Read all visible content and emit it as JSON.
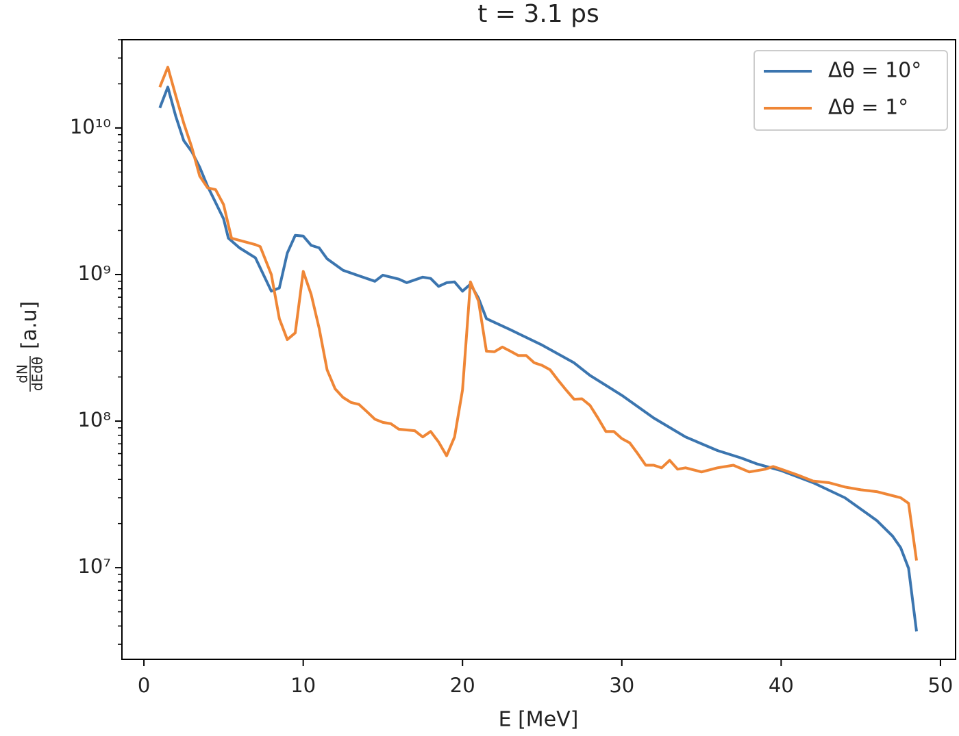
{
  "chart_data": {
    "type": "line",
    "title": "t = 3.1 ps",
    "xlabel": "E [MeV]",
    "ylabel_numerator": "dN",
    "ylabel_denominator": "dEdθ",
    "ylabel_unit": "[a.u]",
    "xlim": [
      -1.38,
      50.95
    ],
    "xticks": [
      0,
      10,
      20,
      30,
      40,
      50
    ],
    "ylim": [
      2370000,
      40000000000
    ],
    "yscale": "log",
    "yticks": [
      {
        "value": 10000000,
        "label": "10⁷"
      },
      {
        "value": 100000000,
        "label": "10⁸"
      },
      {
        "value": 1000000000,
        "label": "10⁹"
      },
      {
        "value": 10000000000,
        "label": "10¹⁰"
      }
    ],
    "grid": false,
    "legend": "upper right",
    "series": [
      {
        "name": "Δθ = 10°",
        "color": "#3b75af",
        "x": [
          1.0,
          1.5,
          2.0,
          2.5,
          3.0,
          3.5,
          4.0,
          4.5,
          5.0,
          5.3,
          6,
          7,
          8,
          8.5,
          9.0,
          9.5,
          10,
          10.5,
          11,
          11.5,
          12.5,
          13.5,
          14.5,
          15,
          16,
          16.5,
          17.5,
          18,
          18.5,
          19,
          19.5,
          20,
          20.5,
          21,
          21.5,
          23,
          25,
          27,
          28,
          30,
          32,
          34,
          36,
          37.5,
          38.5,
          40,
          42,
          44,
          46,
          47,
          47.5,
          48,
          48.5
        ],
        "values": [
          13700000000,
          19000000000,
          12000000000,
          8200000000,
          6900000000,
          5400000000,
          4000000000,
          3100000000,
          2400000000,
          1770000000,
          1520000000,
          1300000000,
          770000000,
          810000000,
          1400000000,
          1850000000,
          1830000000,
          1580000000,
          1520000000,
          1280000000,
          1070000000,
          980000000,
          900000000,
          990000000,
          930000000,
          880000000,
          960000000,
          940000000,
          830000000,
          880000000,
          890000000,
          770000000,
          860000000,
          690000000,
          500000000,
          420000000,
          330000000,
          250000000,
          205000000,
          150000000,
          105000000,
          78000000,
          63000000,
          56000000,
          51000000,
          46000000,
          38000000,
          30000000,
          21000000,
          16400000,
          13700000,
          9900000,
          3670000
        ]
      },
      {
        "name": "Δθ = 1°",
        "color": "#ef8636",
        "x": [
          1.0,
          1.5,
          2.0,
          2.5,
          3.0,
          3.5,
          4.0,
          4.5,
          5.0,
          5.5,
          7.0,
          7.3,
          8,
          8.5,
          9,
          9.5,
          10,
          10.5,
          11,
          11.5,
          12,
          12.5,
          13,
          13.5,
          14,
          14.5,
          15,
          15.5,
          16,
          17,
          17.5,
          18,
          18.5,
          19,
          19.5,
          20,
          20.5,
          21,
          21.5,
          22,
          22.5,
          23,
          23.5,
          24,
          24.5,
          25,
          25.5,
          26,
          26.5,
          27,
          27.5,
          28,
          28.5,
          29,
          29.5,
          30,
          30.5,
          31,
          31.5,
          32,
          32.5,
          33,
          33.5,
          34,
          35,
          36,
          37,
          38,
          39,
          39.5,
          40,
          41,
          42,
          43,
          44,
          45,
          46,
          47,
          47.5,
          48,
          48.5
        ],
        "values": [
          19000000000,
          26000000000,
          16600000000,
          10800000000,
          7400000000,
          4700000000,
          3900000000,
          3800000000,
          3000000000,
          1770000000,
          1600000000,
          1550000000,
          1000000000,
          500000000,
          360000000,
          400000000,
          1050000000,
          730000000,
          430000000,
          224000000,
          166000000,
          145000000,
          134000000,
          130000000,
          116000000,
          103000000,
          98000000,
          96000000,
          88000000,
          86000000,
          78000000,
          85000000,
          72000000,
          58000000,
          78000000,
          163000000,
          890000000,
          660000000,
          300000000,
          297000000,
          320000000,
          300000000,
          280000000,
          280000000,
          250000000,
          240000000,
          224000000,
          190000000,
          163000000,
          141000000,
          142000000,
          128000000,
          105000000,
          85000000,
          85000000,
          76000000,
          71000000,
          60000000,
          50000000,
          50000000,
          48000000,
          54000000,
          47000000,
          48000000,
          45000000,
          48000000,
          50000000,
          45000000,
          47000000,
          49000000,
          47000000,
          43000000,
          39000000,
          38000000,
          35500000,
          34000000,
          33000000,
          31000000,
          30000000,
          27500000,
          11200000
        ]
      }
    ]
  }
}
